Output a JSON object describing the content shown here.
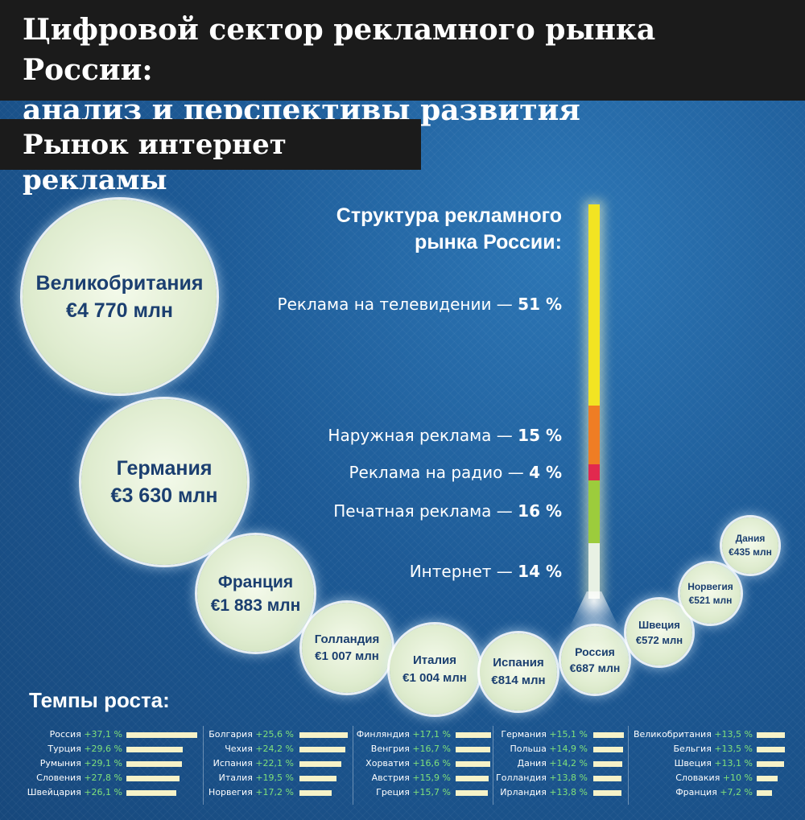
{
  "header": {
    "title_line1": "Цифровой сектор рекламного рынка России:",
    "title_line2": "анализ и перспективы развития"
  },
  "subheader": {
    "title": "Рынок интернет рекламы"
  },
  "bubbles": [
    {
      "country": "Великобритания",
      "value": "€4 770 млн"
    },
    {
      "country": "Германия",
      "value": "€3 630 млн"
    },
    {
      "country": "Франция",
      "value": "€1 883 млн"
    },
    {
      "country": "Голландия",
      "value": "€1 007 млн"
    },
    {
      "country": "Италия",
      "value": "€1 004 млн"
    },
    {
      "country": "Испания",
      "value": "€814 млн"
    },
    {
      "country": "Россия",
      "value": "€687 млн"
    },
    {
      "country": "Швеция",
      "value": "€572 млн"
    },
    {
      "country": "Норвегия",
      "value": "€521 млн"
    },
    {
      "country": "Дания",
      "value": "€435 млн"
    }
  ],
  "structure": {
    "title_line1": "Структура рекламного",
    "title_line2": "рынка России:",
    "segments": [
      {
        "name": "Реклама на телевидении —",
        "value": "51 %",
        "share": 51,
        "color": "#f2e422"
      },
      {
        "name": "Наружная реклама —",
        "value": "15 %",
        "share": 15,
        "color": "#ef7d24"
      },
      {
        "name": "Реклама на радио —",
        "value": "4 %",
        "share": 4,
        "color": "#e2294e"
      },
      {
        "name": "Печатная реклама —",
        "value": "16 %",
        "share": 16,
        "color": "#9ccc3c"
      },
      {
        "name": "Интернет —",
        "value": "14 %",
        "share": 14,
        "color": "#e8f1e4"
      }
    ]
  },
  "growth": {
    "title": "Темпы роста:",
    "columns": [
      [
        {
          "country": "Россия",
          "value": "+37,1 %",
          "pct": 37.1
        },
        {
          "country": "Турция",
          "value": "+29,6 %",
          "pct": 29.6
        },
        {
          "country": "Румыния",
          "value": "+29,1 %",
          "pct": 29.1
        },
        {
          "country": "Словения",
          "value": "+27,8 %",
          "pct": 27.8
        },
        {
          "country": "Швейцария",
          "value": "+26,1 %",
          "pct": 26.1
        }
      ],
      [
        {
          "country": "Болгария",
          "value": "+25,6 %",
          "pct": 25.6
        },
        {
          "country": "Чехия",
          "value": "+24,2 %",
          "pct": 24.2
        },
        {
          "country": "Испания",
          "value": "+22,1 %",
          "pct": 22.1
        },
        {
          "country": "Италия",
          "value": "+19,5 %",
          "pct": 19.5
        },
        {
          "country": "Норвегия",
          "value": "+17,2 %",
          "pct": 17.2
        }
      ],
      [
        {
          "country": "Финляндия",
          "value": "+17,1 %",
          "pct": 17.1
        },
        {
          "country": "Венгрия",
          "value": "+16,7 %",
          "pct": 16.7
        },
        {
          "country": "Хорватия",
          "value": "+16,6 %",
          "pct": 16.6
        },
        {
          "country": "Австрия",
          "value": "+15,9 %",
          "pct": 15.9
        },
        {
          "country": "Греция",
          "value": "+15,7 %",
          "pct": 15.7
        }
      ],
      [
        {
          "country": "Германия",
          "value": "+15,1 %",
          "pct": 15.1
        },
        {
          "country": "Польша",
          "value": "+14,9 %",
          "pct": 14.9
        },
        {
          "country": "Дания",
          "value": "+14,2 %",
          "pct": 14.2
        },
        {
          "country": "Голландия",
          "value": "+13,8 %",
          "pct": 13.8
        },
        {
          "country": "Ирландия",
          "value": "+13,8 %",
          "pct": 13.8
        }
      ],
      [
        {
          "country": "Великобритания",
          "value": "+13,5 %",
          "pct": 13.5
        },
        {
          "country": "Бельгия",
          "value": "+13,5 %",
          "pct": 13.5
        },
        {
          "country": "Швеция",
          "value": "+13,1 %",
          "pct": 13.1
        },
        {
          "country": "Словакия",
          "value": "+10 %",
          "pct": 10
        },
        {
          "country": "Франция",
          "value": "+7,2 %",
          "pct": 7.2
        }
      ]
    ]
  }
}
